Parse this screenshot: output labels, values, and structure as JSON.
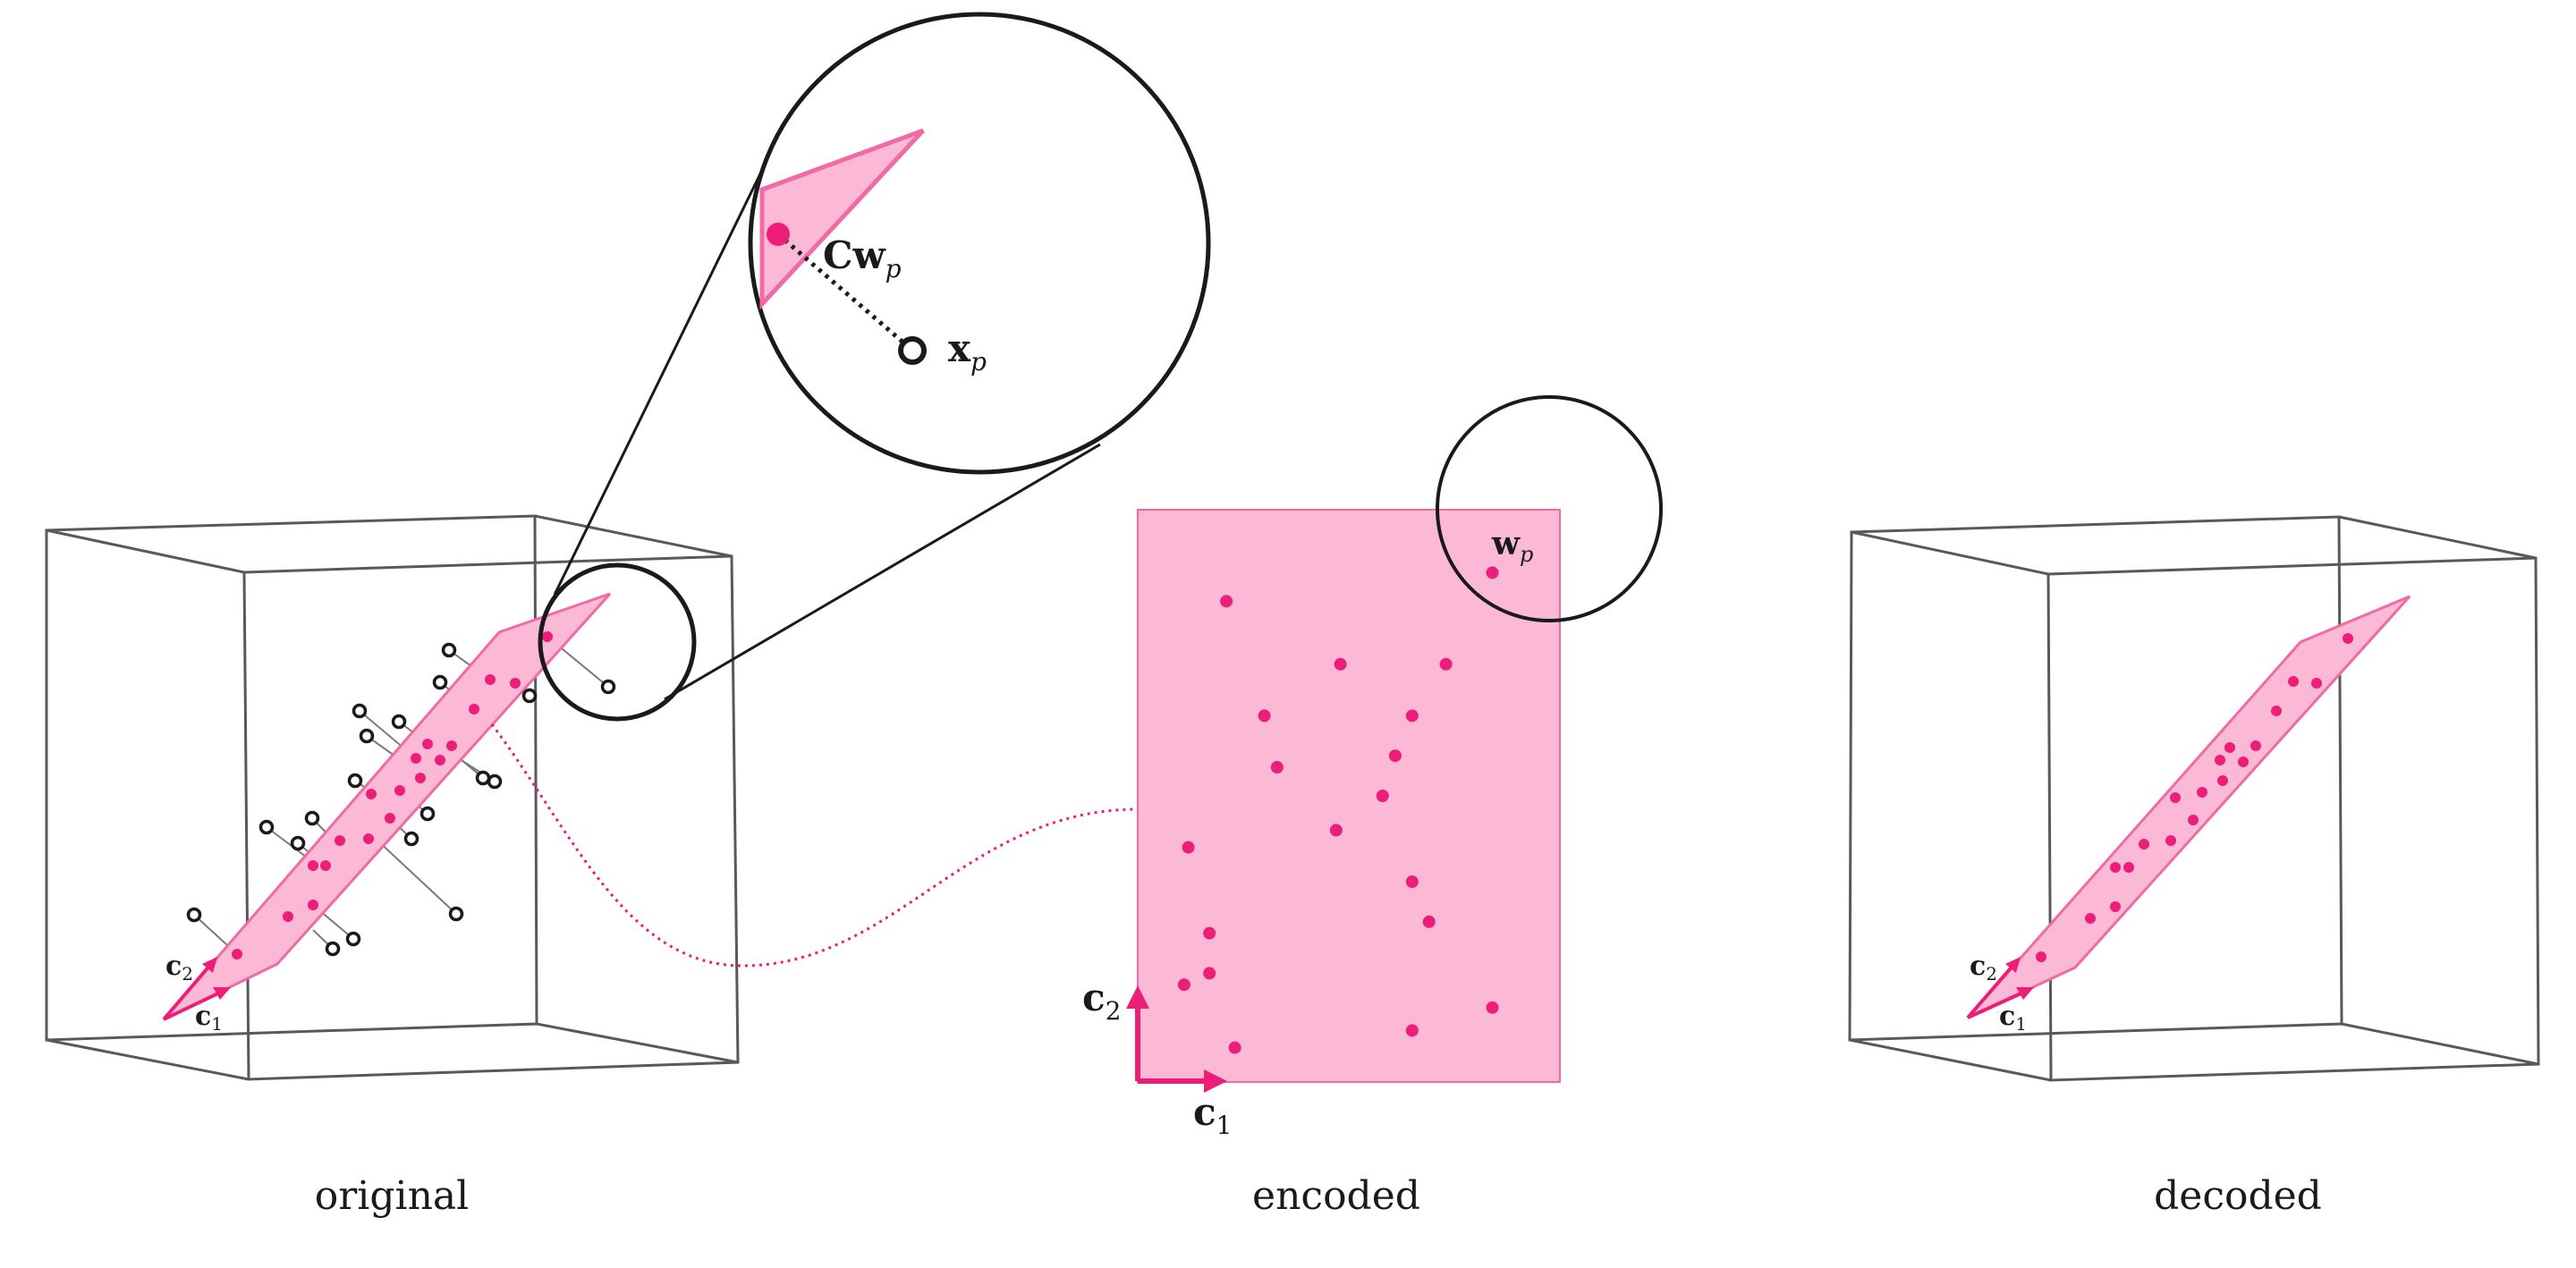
{
  "captions": {
    "original": "original",
    "encoded": "encoded",
    "decoded": "decoded"
  },
  "labels": {
    "c_bold": "c",
    "w_bold": "w",
    "x_bold": "x",
    "C_bold": "C",
    "sub_1": "1",
    "sub_2": "2",
    "sub_p": "p"
  },
  "colors": {
    "accent": "#ec1e79",
    "fill": "#fbb9d6",
    "outline": "#1a1a1a",
    "box_edge": "#595959"
  },
  "encoded_points": [
    [
      0.21,
      0.84
    ],
    [
      0.48,
      0.73
    ],
    [
      0.73,
      0.73
    ],
    [
      0.3,
      0.64
    ],
    [
      0.65,
      0.64
    ],
    [
      0.61,
      0.57
    ],
    [
      0.33,
      0.55
    ],
    [
      0.58,
      0.5
    ],
    [
      0.47,
      0.44
    ],
    [
      0.12,
      0.41
    ],
    [
      0.65,
      0.35
    ],
    [
      0.69,
      0.28
    ],
    [
      0.17,
      0.26
    ],
    [
      0.11,
      0.17
    ],
    [
      0.17,
      0.19
    ],
    [
      0.23,
      0.06
    ],
    [
      0.65,
      0.09
    ],
    [
      0.84,
      0.13
    ],
    [
      0.84,
      0.89
    ]
  ]
}
